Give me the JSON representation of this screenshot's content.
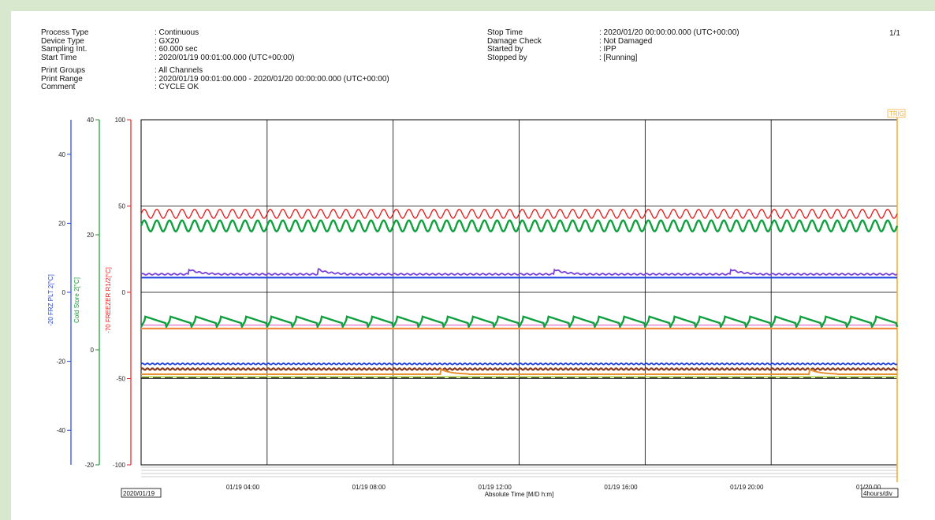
{
  "header": {
    "left_labels": [
      "Process Type",
      "Device Type",
      "Sampling Int.",
      "Start Time",
      "",
      "Print Groups",
      "Print Range",
      "Comment"
    ],
    "left_values": [
      ": Continuous",
      ": GX20",
      ": 60.000 sec",
      ": 2020/01/19 00:01:00.000 (UTC+00:00)",
      "",
      ": All Channels",
      ": 2020/01/19 00:01:00.000 - 2020/01/20 00:00:00.000 (UTC+00:00)",
      ": CYCLE OK"
    ],
    "right_labels": [
      "Stop Time",
      "Damage Check",
      "Started by",
      "Stopped by"
    ],
    "right_values": [
      ": 2020/01/20 00:00:00.000 (UTC+00:00)",
      ": Not Damaged",
      ": IPP",
      ": [Running]"
    ],
    "page": "1/1"
  },
  "colors": {
    "axis_blue": "#2244dd",
    "axis_green": "#109a30",
    "axis_red": "#ee2020",
    "trig_line": "#f0b040",
    "grid": "#000000"
  },
  "chart_data": {
    "type": "line",
    "title": "",
    "xlabel": "Absolute Time [M/D h:m]",
    "x_ticks": [
      "01/19 04:00",
      "01/19 08:00",
      "01/19 12:00",
      "01/19 16:00",
      "01/19 20:00",
      "01/20 00"
    ],
    "x_tick_hours": [
      4,
      8,
      12,
      16,
      20,
      24
    ],
    "x_range_hours": [
      0,
      24
    ],
    "start_label": "2020/01/19",
    "div_label": "4hours/div",
    "trig_label": "TRIG",
    "grid": true,
    "y_axes": [
      {
        "label": "-20 FRZ PLT 2[°C]",
        "color": "#2244dd",
        "ylim": [
          -50,
          50
        ],
        "ticks": [
          40,
          20,
          0,
          -20,
          -40
        ]
      },
      {
        "label": "Cold Store 2[°C]",
        "color": "#109a30",
        "ylim": [
          -20,
          40
        ],
        "ticks": [
          40,
          20,
          0,
          -20
        ]
      },
      {
        "label": "-70 FREEZER R1/2[°C]",
        "color": "#ee2020",
        "ylim": [
          -100,
          100
        ],
        "ticks": [
          100,
          50,
          0,
          -50,
          -100
        ]
      }
    ],
    "series": [
      {
        "color": "#e82020",
        "width": 1.4,
        "base": 45.5,
        "amp": 2.6,
        "cycles": 60,
        "shape": "sine",
        "unit_axis": "red"
      },
      {
        "color": "#10a040",
        "width": 2.4,
        "base": 38.5,
        "amp": 3.2,
        "cycles": 60,
        "shape": "sine",
        "unit_axis": "red"
      },
      {
        "color": "#7a40d8",
        "width": 1.8,
        "base": 10.5,
        "amp": 0.4,
        "cycles": 120,
        "shape": "sine",
        "unit_axis": "red",
        "bumps_hours": [
          1.5,
          5.6,
          13.1,
          18.7
        ]
      },
      {
        "color": "#1a3ee0",
        "width": 2.0,
        "base": 8.5,
        "amp": 0.3,
        "cycles": 0,
        "shape": "flat",
        "unit_axis": "red"
      },
      {
        "color": "#e070d0",
        "width": 1.2,
        "base": -19.0,
        "amp": 1.0,
        "cycles": 30,
        "shape": "flat",
        "unit_axis": "red"
      },
      {
        "color": "#10a040",
        "width": 2.4,
        "base": -16.0,
        "amp": 4.0,
        "cycles": 30,
        "shape": "saw",
        "unit_axis": "red"
      },
      {
        "color": "#f08a40",
        "width": 2.2,
        "base": -21.0,
        "amp": 0.5,
        "cycles": 0,
        "shape": "flat",
        "unit_axis": "red"
      },
      {
        "color": "#1a3ee0",
        "width": 1.8,
        "base": -41.5,
        "amp": 0.4,
        "cycles": 150,
        "shape": "sine",
        "unit_axis": "red"
      },
      {
        "color": "#8b3a1a",
        "width": 2.2,
        "base": -44.5,
        "amp": 0.5,
        "cycles": 150,
        "shape": "sine",
        "unit_axis": "red"
      },
      {
        "color": "#e89030",
        "width": 2.0,
        "base": -47.5,
        "amp": 0.6,
        "cycles": 0,
        "shape": "flat",
        "unit_axis": "red",
        "bumps_hours": [
          9.5,
          21.2
        ]
      },
      {
        "color": "#a8d030",
        "width": 1.6,
        "base": -49.0,
        "amp": 0.3,
        "cycles": 0,
        "shape": "flat",
        "unit_axis": "red"
      },
      {
        "color": "#222222",
        "width": 1.0,
        "base": -49.5,
        "amp": 0.0,
        "cycles": 0,
        "shape": "dash",
        "unit_axis": "red"
      }
    ]
  }
}
